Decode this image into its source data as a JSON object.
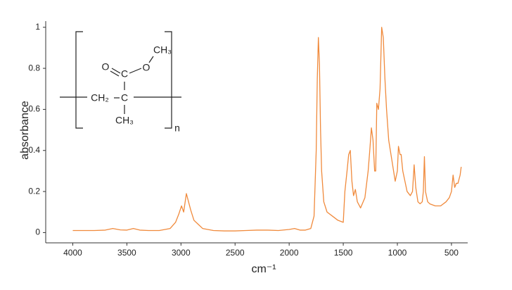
{
  "chart_data": {
    "type": "line",
    "x_label": "cm⁻¹",
    "y_label": "absorbance",
    "annotations": [
      "CH₃",
      "O",
      "O",
      "C",
      "CH₂",
      "C",
      "CH₃",
      "n"
    ],
    "x": [
      4000,
      3900,
      3800,
      3700,
      3630,
      3560,
      3500,
      3440,
      3380,
      3300,
      3200,
      3100,
      3050,
      3020,
      2995,
      2975,
      2950,
      2930,
      2910,
      2880,
      2840,
      2800,
      2700,
      2600,
      2500,
      2400,
      2300,
      2200,
      2100,
      2000,
      1950,
      1900,
      1850,
      1800,
      1770,
      1750,
      1740,
      1730,
      1720,
      1710,
      1700,
      1680,
      1650,
      1600,
      1550,
      1500,
      1485,
      1465,
      1450,
      1435,
      1420,
      1405,
      1388,
      1370,
      1340,
      1300,
      1270,
      1255,
      1240,
      1225,
      1210,
      1200,
      1190,
      1175,
      1160,
      1145,
      1130,
      1115,
      1100,
      1080,
      1065,
      1050,
      1020,
      1000,
      990,
      975,
      965,
      950,
      930,
      910,
      880,
      860,
      845,
      830,
      810,
      790,
      770,
      760,
      750,
      740,
      720,
      700,
      650,
      600,
      550,
      520,
      500,
      485,
      470,
      455,
      440,
      420,
      410
    ],
    "values": [
      0.01,
      0.01,
      0.01,
      0.012,
      0.02,
      0.013,
      0.012,
      0.02,
      0.012,
      0.01,
      0.01,
      0.02,
      0.05,
      0.09,
      0.13,
      0.1,
      0.19,
      0.15,
      0.11,
      0.06,
      0.04,
      0.02,
      0.01,
      0.008,
      0.008,
      0.01,
      0.012,
      0.012,
      0.01,
      0.015,
      0.02,
      0.012,
      0.012,
      0.02,
      0.08,
      0.4,
      0.75,
      0.95,
      0.82,
      0.5,
      0.3,
      0.15,
      0.1,
      0.08,
      0.06,
      0.05,
      0.2,
      0.3,
      0.38,
      0.4,
      0.25,
      0.18,
      0.21,
      0.15,
      0.12,
      0.17,
      0.3,
      0.4,
      0.51,
      0.45,
      0.3,
      0.3,
      0.63,
      0.6,
      0.7,
      1.0,
      0.95,
      0.75,
      0.6,
      0.45,
      0.4,
      0.35,
      0.25,
      0.3,
      0.42,
      0.38,
      0.38,
      0.3,
      0.25,
      0.2,
      0.18,
      0.2,
      0.33,
      0.22,
      0.15,
      0.14,
      0.15,
      0.2,
      0.37,
      0.2,
      0.15,
      0.14,
      0.13,
      0.13,
      0.15,
      0.17,
      0.2,
      0.28,
      0.22,
      0.24,
      0.24,
      0.28,
      0.32
    ],
    "color": "#f08a3c",
    "xlim": [
      4250,
      350
    ],
    "ylim": [
      -0.05,
      1.03
    ],
    "xticks": [
      4000,
      3500,
      3000,
      2500,
      2000,
      1500,
      1000,
      500
    ],
    "yticks": [
      0,
      0.2,
      0.4,
      0.6,
      0.8,
      1
    ]
  }
}
